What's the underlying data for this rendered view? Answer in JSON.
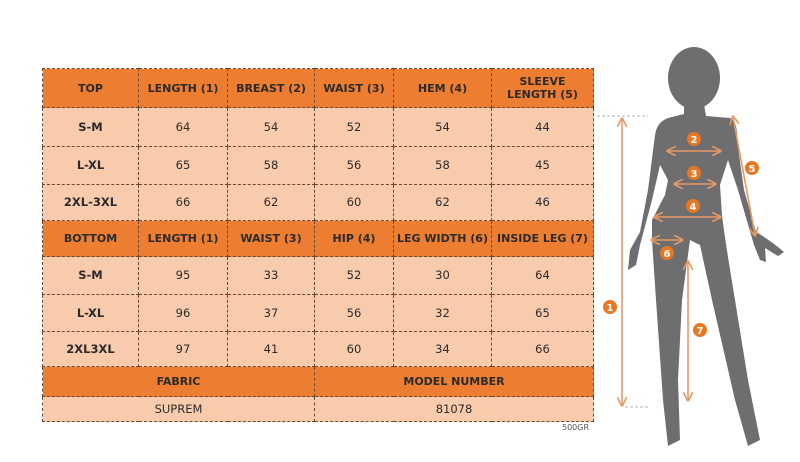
{
  "top": {
    "headers": [
      "TOP",
      "LENGTH (1)",
      "BREAST (2)",
      "WAIST (3)",
      "HEM (4)",
      "SLEEVE LENGTH (5)"
    ],
    "rows": [
      [
        "S-M",
        "64",
        "54",
        "52",
        "54",
        "44"
      ],
      [
        "L-XL",
        "65",
        "58",
        "56",
        "58",
        "45"
      ],
      [
        "2XL-3XL",
        "66",
        "62",
        "60",
        "62",
        "46"
      ]
    ]
  },
  "bottom": {
    "headers": [
      "BOTTOM",
      "LENGTH (1)",
      "WAIST (3)",
      "HIP (4)",
      "LEG WIDTH (6)",
      "INSIDE LEG (7)"
    ],
    "rows": [
      [
        "S-M",
        "95",
        "33",
        "52",
        "30",
        "64"
      ],
      [
        "L-XL",
        "96",
        "37",
        "56",
        "32",
        "65"
      ],
      [
        "2XL3XL",
        "97",
        "41",
        "60",
        "34",
        "66"
      ]
    ]
  },
  "info": {
    "fabric_label": "FABRIC",
    "model_label": "MODEL NUMBER",
    "fabric_value": "SUPREM",
    "model_value": "81078"
  },
  "weight_note": "500GR",
  "figure": {
    "markers": [
      "1",
      "2",
      "3",
      "4",
      "5",
      "6",
      "7"
    ]
  },
  "colors": {
    "header": "#ED7D31",
    "row": "#F8CBAD",
    "silhouette": "#6E6E70",
    "arrow": "#E59A62"
  }
}
